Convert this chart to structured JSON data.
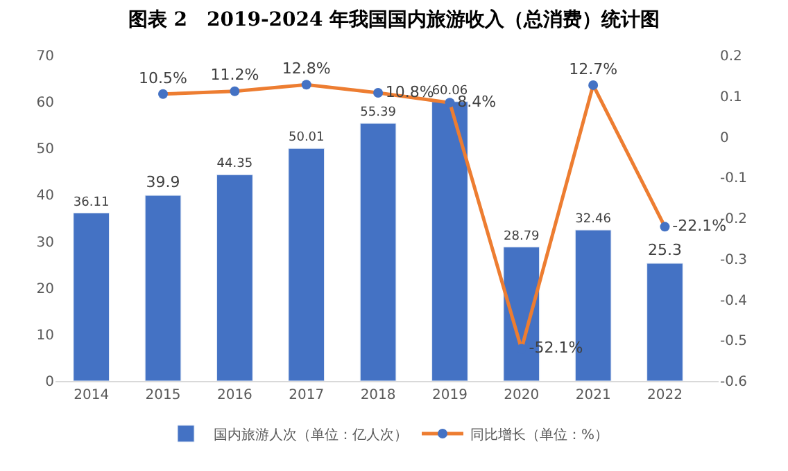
{
  "chart_data": {
    "type": "bar",
    "title": "图表 2　2019-2024 年我国国内旅游收入（总消费）统计图",
    "categories": [
      "2014",
      "2015",
      "2016",
      "2017",
      "2018",
      "2019",
      "2020",
      "2021",
      "2022"
    ],
    "series": [
      {
        "name": "国内旅游人次（单位：亿人次）",
        "color": "#4472c4",
        "values": [
          36.11,
          39.9,
          44.35,
          50.01,
          55.39,
          60.06,
          28.79,
          32.46,
          25.3
        ]
      },
      {
        "name": "同比增长（单位：%）",
        "type": "line",
        "axis": "y2",
        "color": "#ed7d31",
        "colors": [
          "#4472c4",
          "#4472c4",
          "#4472c4",
          "#4472c4",
          "#4472c4",
          "#4472c4",
          "#4472c4",
          "#4472c4",
          "#4472c4"
        ],
        "marker": "circle",
        "values": [
          null,
          0.105,
          0.112,
          0.128,
          0.108,
          0.084,
          -0.521,
          0.127,
          -0.221
        ],
        "value_labels": [
          null,
          "10.5%",
          "11.2%",
          "12.8%",
          "10.8%",
          "8.4%",
          "-52.1%",
          "12.7%",
          "-22.1%"
        ]
      }
    ],
    "ylim": [
      0,
      70
    ],
    "yticks": [
      0,
      10,
      20,
      30,
      40,
      50,
      60,
      70
    ],
    "y2lim": [
      -0.6,
      0.2
    ],
    "y2ticks": [
      -0.6,
      -0.5,
      -0.4,
      -0.3,
      -0.2,
      -0.1,
      0,
      0.1,
      0.2
    ],
    "data_labels": true,
    "legend": "bottom"
  }
}
